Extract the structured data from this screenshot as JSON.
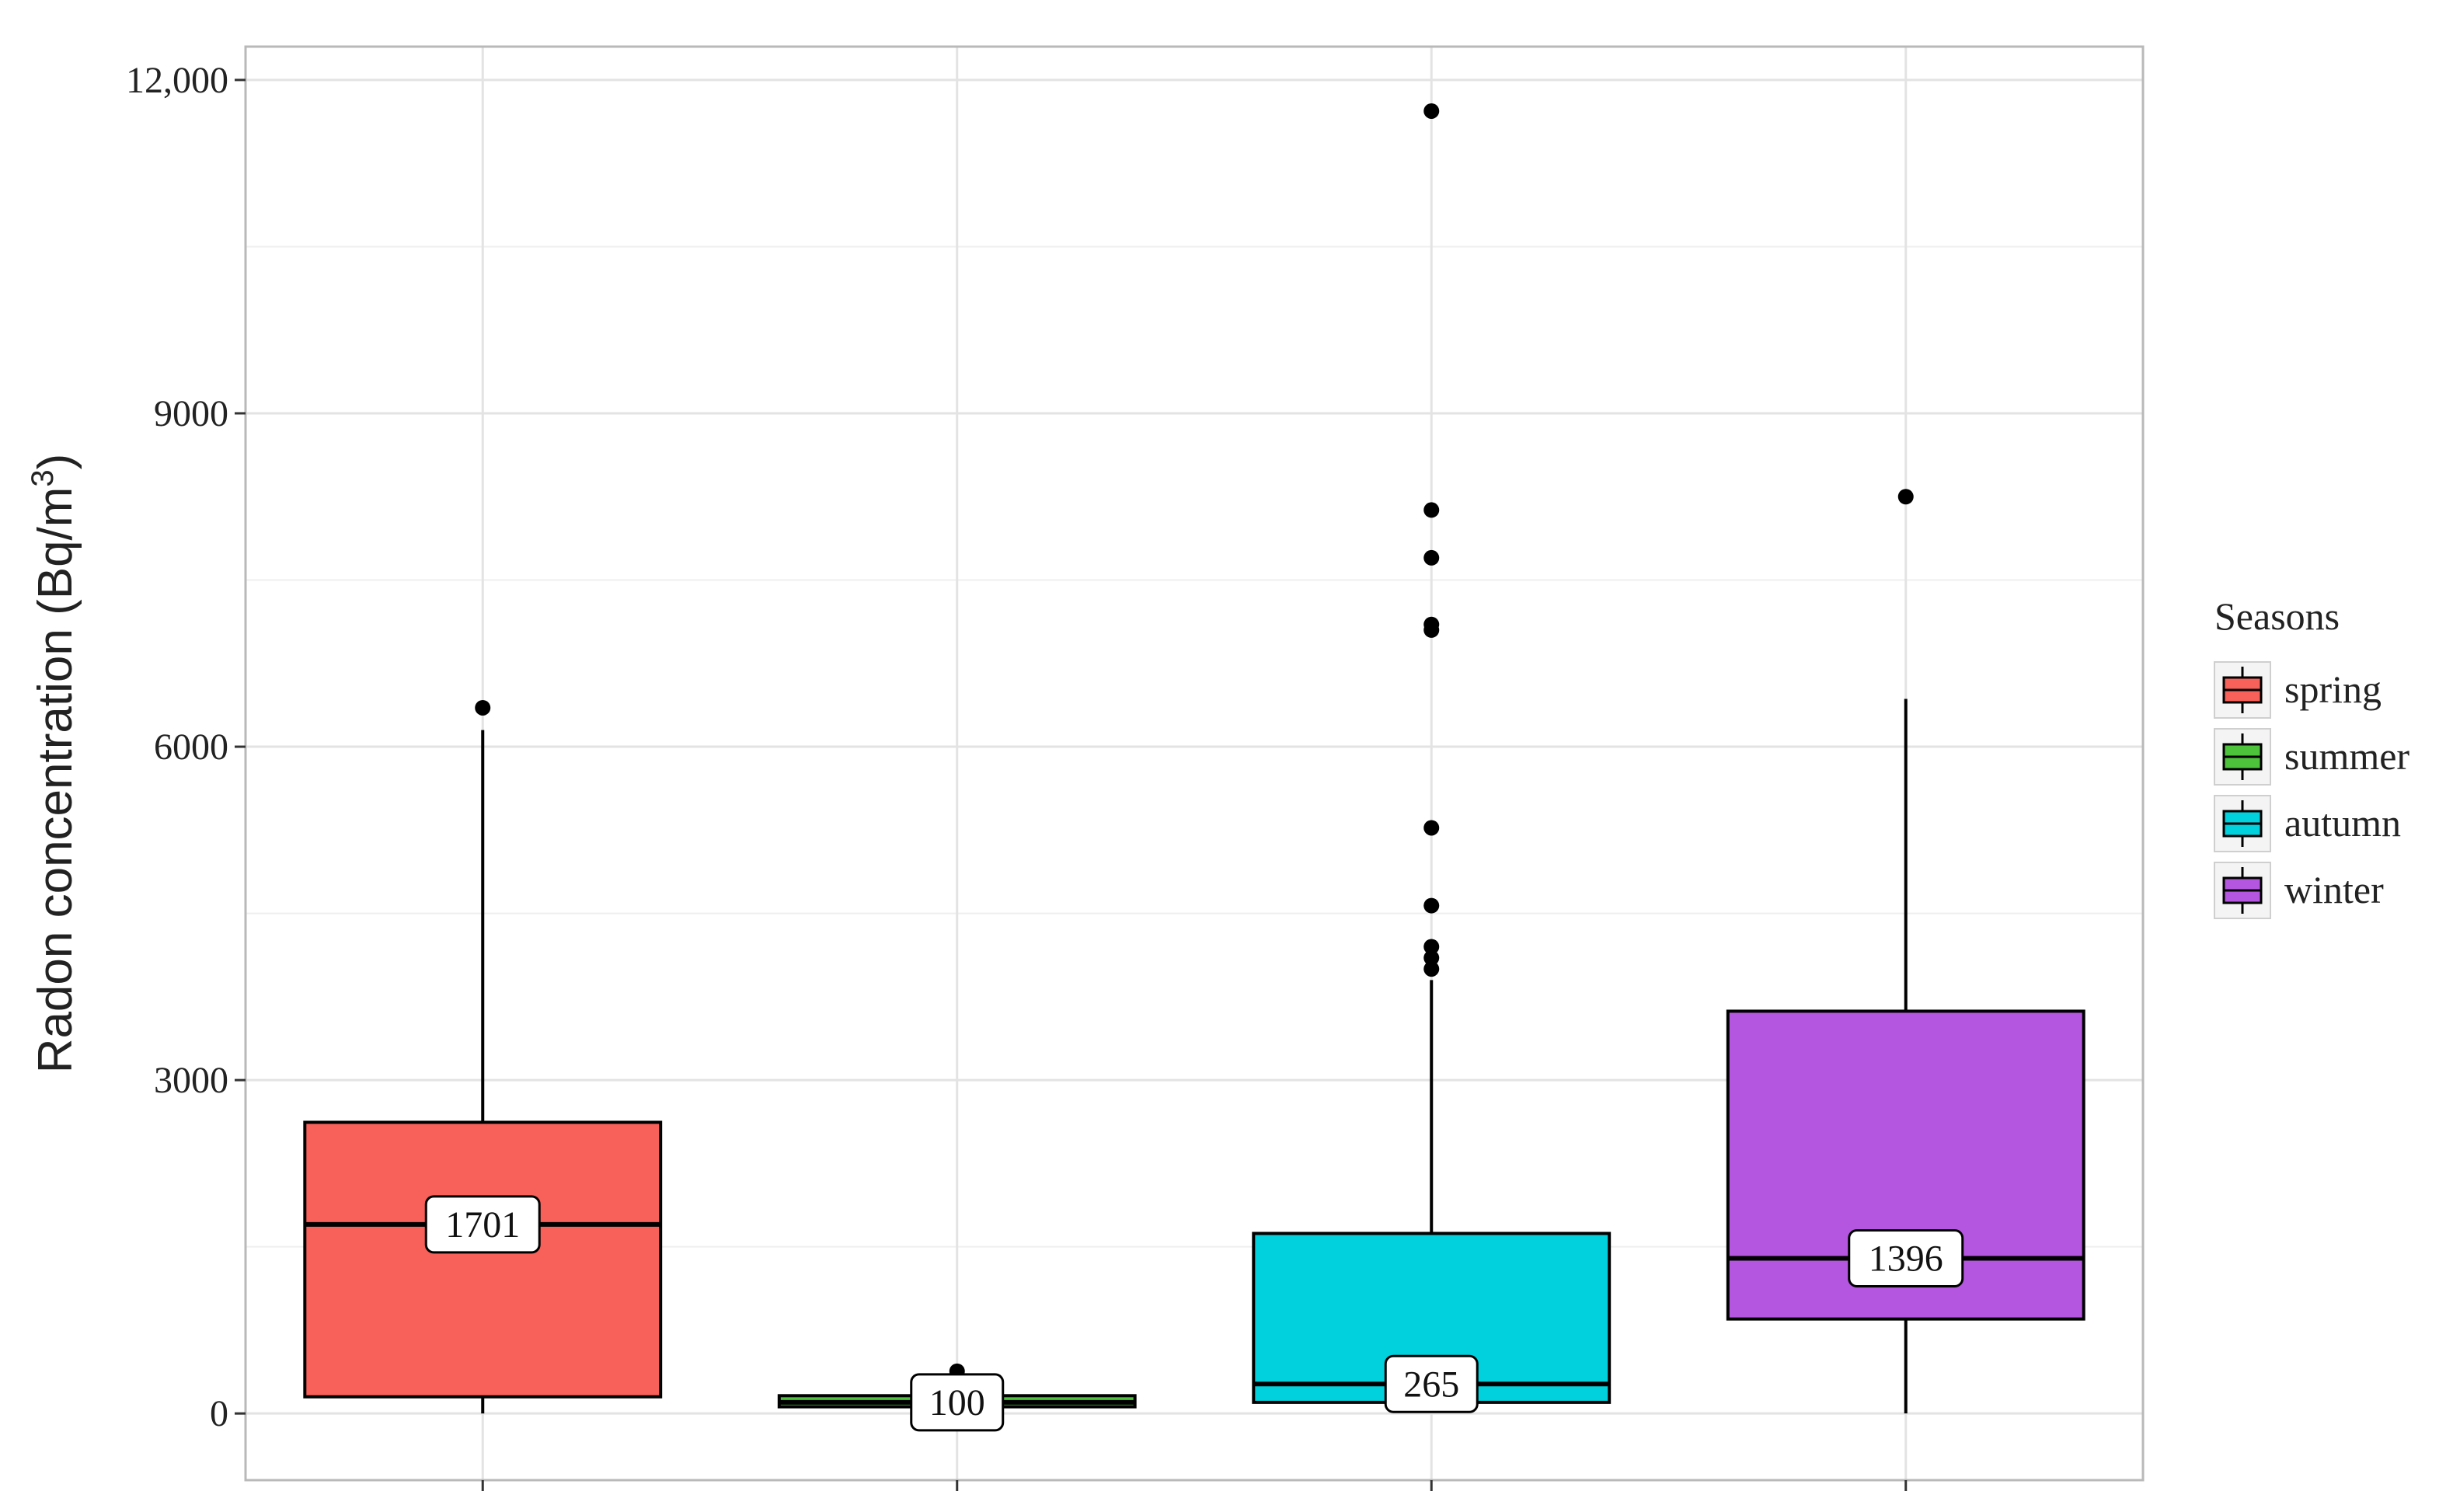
{
  "chart_data": {
    "type": "box",
    "ylabel": "Radon concentration (Bq/m",
    "ylabel_sup": "3",
    "ylabel_close": ")",
    "ylim": [
      -600,
      12300
    ],
    "yticks": [
      0,
      3000,
      6000,
      9000,
      12000
    ],
    "ytick_labels": [
      "0",
      "3000",
      "6000",
      "9000",
      "12,000"
    ],
    "grid": true,
    "legend": {
      "title": "Seasons",
      "position": "right"
    },
    "series": [
      {
        "name": "spring",
        "color": "#F8605A",
        "whisker_low": 0,
        "q1": 150,
        "median": 1701,
        "q3": 2620,
        "whisker_high": 6150,
        "outliers": [
          6350
        ],
        "median_label": "1701"
      },
      {
        "name": "summer",
        "color": "#4CC33A",
        "whisker_low": 30,
        "q1": 60,
        "median": 100,
        "q3": 160,
        "whisker_high": 300,
        "outliers": [
          380
        ],
        "median_label": "100"
      },
      {
        "name": "autumn",
        "color": "#00D1DC",
        "whisker_low": 100,
        "q1": 100,
        "median": 265,
        "q3": 1620,
        "whisker_high": 3900,
        "outliers": [
          4000,
          4100,
          4200,
          4570,
          5270,
          7050,
          7100,
          7700,
          8130,
          11720
        ],
        "median_label": "265"
      },
      {
        "name": "winter",
        "color": "#B456E0",
        "whisker_low": 0,
        "q1": 850,
        "median": 1396,
        "q3": 3620,
        "whisker_high": 6430,
        "outliers": [
          8250
        ],
        "median_label": "1396"
      }
    ]
  }
}
